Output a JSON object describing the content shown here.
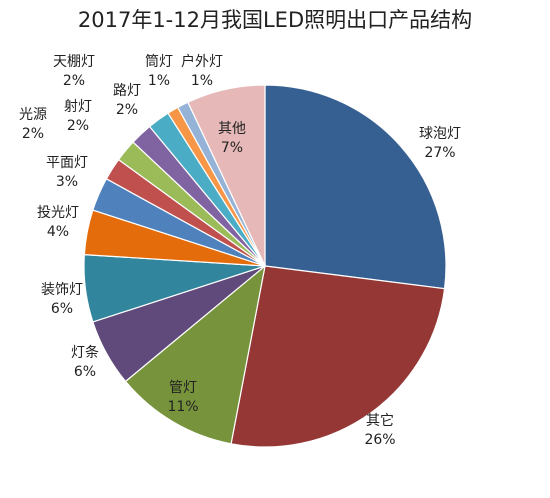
{
  "chart_data": {
    "type": "pie",
    "title": "2017年1-12月我国LED照明出口产品结构",
    "slices": [
      {
        "label": "球泡灯",
        "value": 27,
        "display": "27%",
        "color": "#376092"
      },
      {
        "label": "其它",
        "value": 26,
        "display": "26%",
        "color": "#953735"
      },
      {
        "label": "管灯",
        "value": 11,
        "display": "11%",
        "color": "#77933C"
      },
      {
        "label": "灯条",
        "value": 6,
        "display": "6%",
        "color": "#604A7B"
      },
      {
        "label": "装饰灯",
        "value": 6,
        "display": "6%",
        "color": "#31859C"
      },
      {
        "label": "投光灯",
        "value": 4,
        "display": "4%",
        "color": "#E46C0A"
      },
      {
        "label": "平面灯",
        "value": 3,
        "display": "3%",
        "color": "#4F81BD"
      },
      {
        "label": "射灯",
        "value": 2,
        "display": "2%",
        "color": "#C0504D"
      },
      {
        "label": "光源",
        "value": 2,
        "display": "2%",
        "color": "#9BBB59"
      },
      {
        "label": "天棚灯",
        "value": 2,
        "display": "2%",
        "color": "#8064A2"
      },
      {
        "label": "路灯",
        "value": 2,
        "display": "2%",
        "color": "#4BACC6"
      },
      {
        "label": "筒灯",
        "value": 1,
        "display": "1%",
        "color": "#F79646"
      },
      {
        "label": "户外灯",
        "value": 1,
        "display": "1%",
        "color": "#95B3D7"
      },
      {
        "label": "其他",
        "value": 7,
        "display": "7%",
        "color": "#E6B9B8"
      }
    ]
  }
}
